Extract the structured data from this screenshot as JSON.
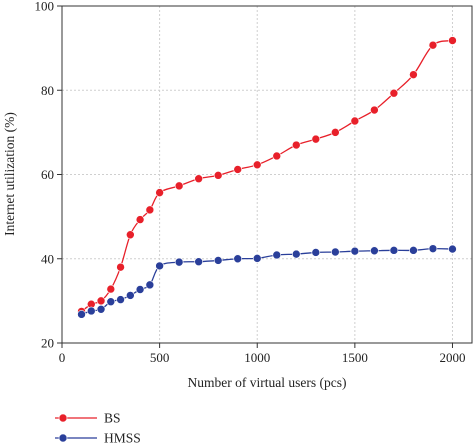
{
  "chart_data": {
    "type": "line",
    "title": "",
    "xlabel": "Number of virtual users (pcs)",
    "ylabel": "Internet utilization (%)",
    "xlim": [
      0,
      2100
    ],
    "ylim": [
      20,
      100
    ],
    "xticks": [
      0,
      500,
      1000,
      1500,
      2000
    ],
    "yticks": [
      20,
      40,
      60,
      80,
      100
    ],
    "grid": true,
    "legend_position": "bottom-left",
    "series": [
      {
        "name": "BS",
        "color": "#e8202a",
        "x": [
          100,
          150,
          200,
          250,
          300,
          350,
          400,
          450,
          500,
          600,
          700,
          800,
          900,
          1000,
          1100,
          1200,
          1300,
          1400,
          1500,
          1600,
          1700,
          1800,
          1900,
          2000
        ],
        "y": [
          27.5,
          29.2,
          30.0,
          32.8,
          38.0,
          45.7,
          49.3,
          51.6,
          55.7,
          57.3,
          59.0,
          59.8,
          61.2,
          62.3,
          64.4,
          67.0,
          68.4,
          70.0,
          72.7,
          75.3,
          79.3,
          83.7,
          90.7,
          91.8
        ]
      },
      {
        "name": "HMSS",
        "color": "#2a3f9a",
        "x": [
          100,
          150,
          200,
          250,
          300,
          350,
          400,
          450,
          500,
          600,
          700,
          800,
          900,
          1000,
          1100,
          1200,
          1300,
          1400,
          1500,
          1600,
          1700,
          1800,
          1900,
          2000
        ],
        "y": [
          26.8,
          27.6,
          28.0,
          29.8,
          30.3,
          31.3,
          32.7,
          33.8,
          38.3,
          39.2,
          39.3,
          39.6,
          40.0,
          40.1,
          40.9,
          41.1,
          41.5,
          41.6,
          41.8,
          41.9,
          42.0,
          42.0,
          42.4,
          42.3
        ]
      }
    ]
  }
}
